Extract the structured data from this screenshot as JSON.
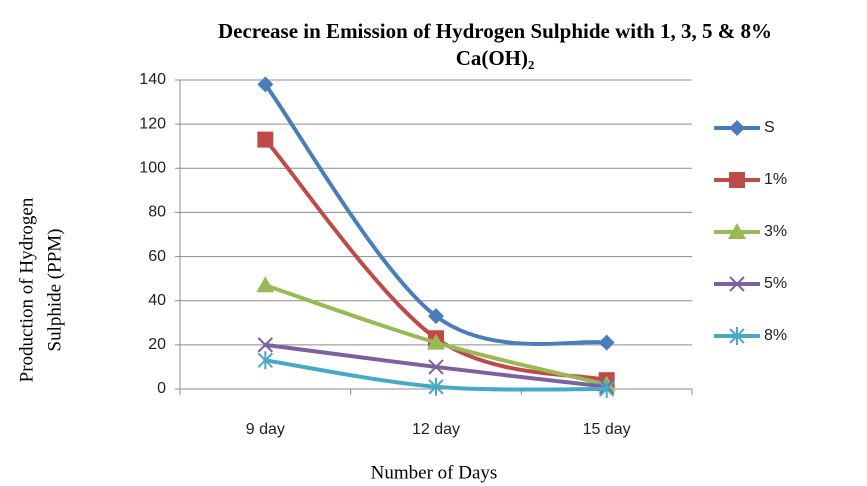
{
  "chart_data": {
    "type": "line",
    "title": [
      "Decrease in Emission of Hydrogen Sulphide with 1, 3, 5 & 8%",
      "Ca(OH)₂"
    ],
    "ylabel": [
      "Production of  Hydrogen",
      "Sulphide (PPM)"
    ],
    "xlabel": "Number of Days",
    "categories": [
      "9 day",
      "12 day",
      "15 day"
    ],
    "series": [
      {
        "name": "S",
        "color": "#4a7ebb",
        "marker": "diamond",
        "values": [
          138,
          33,
          21
        ]
      },
      {
        "name": "1%",
        "color": "#be4b48",
        "marker": "square",
        "values": [
          113,
          23,
          4
        ]
      },
      {
        "name": "3%",
        "color": "#98b954",
        "marker": "triangle",
        "values": [
          47,
          21,
          2
        ]
      },
      {
        "name": "5%",
        "color": "#7d60a0",
        "marker": "x",
        "values": [
          20,
          10,
          1
        ]
      },
      {
        "name": "8%",
        "color": "#46aac5",
        "marker": "asterisk",
        "values": [
          13,
          1,
          0
        ]
      }
    ],
    "ylim": [
      0,
      140
    ],
    "yticks": [
      0,
      20,
      40,
      60,
      80,
      100,
      120,
      140
    ],
    "grid": true,
    "legend": "right"
  }
}
